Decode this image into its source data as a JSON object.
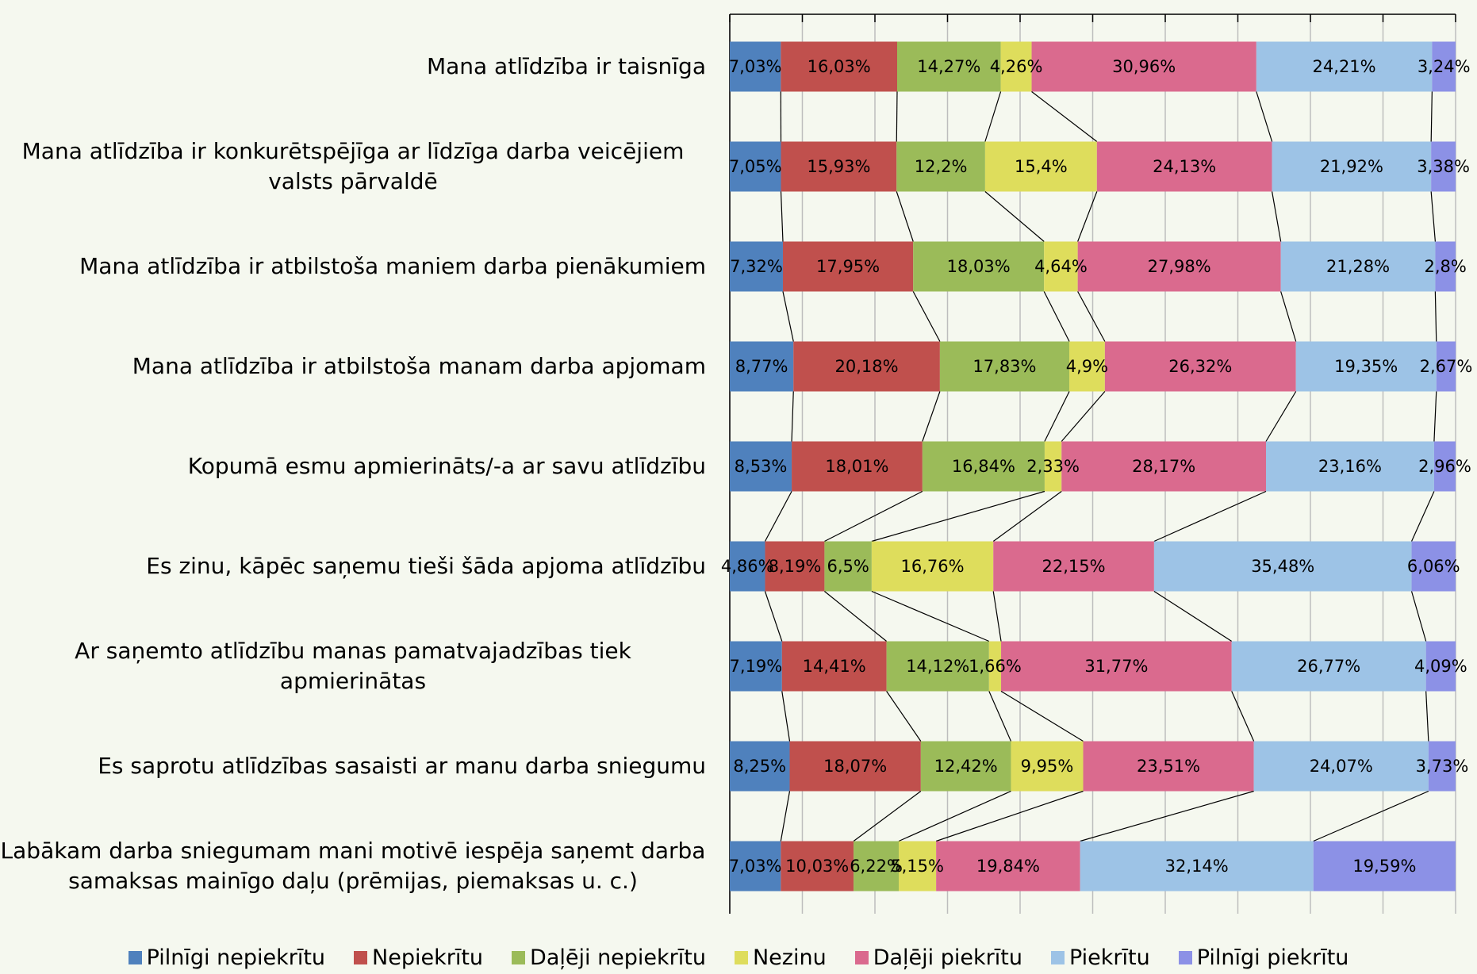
{
  "chart_data": {
    "type": "stacked_barh",
    "categories": [
      "Mana atlīdzība ir taisnīga",
      "Mana atlīdzība ir konkurētspējīga ar līdzīga darba veicējiem valsts pārvaldē",
      "Mana atlīdzība ir atbilstoša maniem darba pienākumiem",
      "Mana atlīdzība ir atbilstoša manam darba apjomam",
      "Kopumā esmu apmierināts/-a ar savu atlīdzību",
      "Es zinu, kāpēc saņemu tieši šāda apjoma atlīdzību",
      "Ar saņemto atlīdzību manas pamatvajadzības tiek apmierinātas",
      "Es saprotu atlīdzības sasaisti ar manu darba sniegumu",
      "Labākam darba sniegumam mani motivē iespēja saņemt darba samaksas mainīgo daļu (prēmijas, piemaksas u. c.)"
    ],
    "series": [
      {
        "name": "Pilnīgi nepiekrītu",
        "color": "#4f81bd",
        "values": [
          7.03,
          7.05,
          7.32,
          8.77,
          8.53,
          4.86,
          7.19,
          8.25,
          7.03
        ],
        "value_labels": [
          "7,03%",
          "7,05%",
          "7,32%",
          "8,77%",
          "8,53%",
          "4,86%",
          "7,19%",
          "8,25%",
          "7,03%"
        ]
      },
      {
        "name": "Nepiekrītu",
        "color": "#c0504d",
        "values": [
          16.03,
          15.93,
          17.95,
          20.18,
          18.01,
          8.19,
          14.41,
          18.07,
          10.03
        ],
        "value_labels": [
          "16,03%",
          "15,93%",
          "17,95%",
          "20,18%",
          "18,01%",
          "8,19%",
          "14,41%",
          "18,07%",
          "10,03%"
        ]
      },
      {
        "name": "Daļēji nepiekrītu",
        "color": "#9bbb59",
        "values": [
          14.27,
          12.2,
          18.03,
          17.83,
          16.84,
          6.5,
          14.12,
          12.42,
          6.22
        ],
        "value_labels": [
          "14,27%",
          "12,2%",
          "18,03%",
          "17,83%",
          "16,84%",
          "6,5%",
          "14,12%",
          "12,42%",
          "6,22%"
        ]
      },
      {
        "name": "Nezinu",
        "color": "#dedd5c",
        "values": [
          4.26,
          15.4,
          4.64,
          4.9,
          2.33,
          16.76,
          1.66,
          9.95,
          5.15
        ],
        "value_labels": [
          "4,26%",
          "15,4%",
          "4,64%",
          "4,9%",
          "2,33%",
          "16,76%",
          "1,66%",
          "9,95%",
          "5,15%"
        ]
      },
      {
        "name": "Daļēji piekrītu",
        "color": "#da6a8e",
        "values": [
          30.96,
          24.13,
          27.98,
          26.32,
          28.17,
          22.15,
          31.77,
          23.51,
          19.84
        ],
        "value_labels": [
          "30,96%",
          "24,13%",
          "27,98%",
          "26,32%",
          "28,17%",
          "22,15%",
          "31,77%",
          "23,51%",
          "19,84%"
        ]
      },
      {
        "name": "Piekrītu",
        "color": "#9dc3e6",
        "values": [
          24.21,
          21.92,
          21.28,
          19.35,
          23.16,
          35.48,
          26.77,
          24.07,
          32.14
        ],
        "value_labels": [
          "24,21%",
          "21,92%",
          "21,28%",
          "19,35%",
          "23,16%",
          "35,48%",
          "26,77%",
          "24,07%",
          "32,14%"
        ]
      },
      {
        "name": "Pilnīgi piekrītu",
        "color": "#8c91e6",
        "values": [
          3.24,
          3.38,
          2.8,
          2.67,
          2.96,
          6.06,
          4.09,
          3.73,
          19.59
        ],
        "value_labels": [
          "3,24%",
          "3,38%",
          "2,8%",
          "2,67%",
          "2,96%",
          "6,06%",
          "4,09%",
          "3,73%",
          "19,59%"
        ]
      }
    ],
    "xlim": [
      0,
      100
    ],
    "xticks": [
      0,
      10,
      20,
      30,
      40,
      50,
      60,
      70,
      80,
      90,
      100
    ],
    "grid": true,
    "series_lines": true,
    "legend": "bottom"
  }
}
